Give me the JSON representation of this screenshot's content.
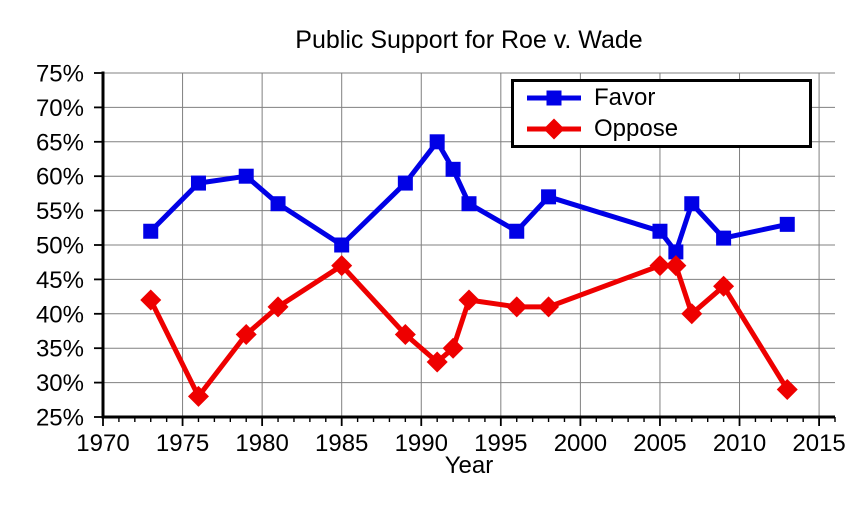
{
  "chart_data": {
    "type": "line",
    "title": "Public Support for Roe v. Wade",
    "xlabel": "Year",
    "ylabel": "",
    "x_range": [
      1970,
      2016
    ],
    "y_range": [
      25,
      75
    ],
    "x_ticks_major": [
      1970,
      1975,
      1980,
      1985,
      1990,
      1995,
      2000,
      2005,
      2010,
      2015
    ],
    "x_minor_tick_interval": 1,
    "y_ticks": [
      25,
      30,
      35,
      40,
      45,
      50,
      55,
      60,
      65,
      70,
      75
    ],
    "y_tick_suffix": "%",
    "grid": true,
    "grid_color": "#808080",
    "axis_color": "#000000",
    "legend_position": "top-right-inside",
    "series": [
      {
        "name": "Favor",
        "color": "#0000e6",
        "marker": "square",
        "x": [
          1973,
          1976,
          1979,
          1981,
          1985,
          1989,
          1991,
          1992,
          1993,
          1996,
          1998,
          2005,
          2006,
          2007,
          2009,
          2013
        ],
        "values": [
          52,
          59,
          60,
          56,
          50,
          59,
          65,
          61,
          56,
          52,
          57,
          52,
          49,
          56,
          51,
          53
        ]
      },
      {
        "name": "Oppose",
        "color": "#ee0000",
        "marker": "diamond",
        "x": [
          1973,
          1976,
          1979,
          1981,
          1985,
          1989,
          1991,
          1992,
          1993,
          1996,
          1998,
          2005,
          2006,
          2007,
          2009,
          2013
        ],
        "values": [
          42,
          28,
          37,
          41,
          47,
          37,
          33,
          35,
          42,
          41,
          41,
          47,
          47,
          40,
          44,
          29
        ]
      }
    ]
  }
}
